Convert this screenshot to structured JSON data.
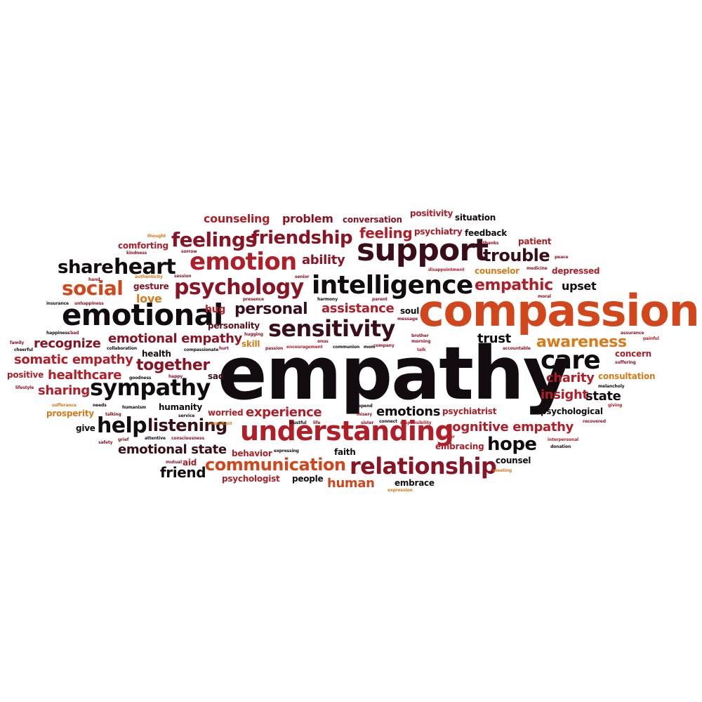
{
  "palette": {
    "c1": "#120c10",
    "c2": "#3a0e16",
    "c3": "#8a1424",
    "c4": "#b01e28",
    "c5": "#d2461c",
    "c6": "#d67a1a",
    "c7": "#5c0f18"
  },
  "words": [
    {
      "text": "empathy"
    },
    {
      "text": "compassion"
    },
    {
      "text": "support"
    },
    {
      "text": "intelligence"
    },
    {
      "text": "understanding"
    },
    {
      "text": "relationship"
    },
    {
      "text": "emotional"
    },
    {
      "text": "sensitivity"
    },
    {
      "text": "sympathy"
    },
    {
      "text": "emotion"
    },
    {
      "text": "psychology"
    },
    {
      "text": "communication"
    },
    {
      "text": "heart"
    },
    {
      "text": "feelings"
    },
    {
      "text": "friendship"
    },
    {
      "text": "care"
    },
    {
      "text": "help"
    },
    {
      "text": "listening"
    },
    {
      "text": "social"
    },
    {
      "text": "share"
    },
    {
      "text": "trouble"
    },
    {
      "text": "personal"
    },
    {
      "text": "empathic"
    },
    {
      "text": "awareness"
    },
    {
      "text": "together"
    },
    {
      "text": "hope"
    },
    {
      "text": "counseling"
    },
    {
      "text": "problem"
    },
    {
      "text": "feeling"
    },
    {
      "text": "ability"
    },
    {
      "text": "emotions"
    },
    {
      "text": "experience"
    },
    {
      "text": "cognitive empathy"
    },
    {
      "text": "emotional state"
    },
    {
      "text": "emotional empathy"
    },
    {
      "text": "somatic empathy"
    },
    {
      "text": "recognize"
    },
    {
      "text": "healthcare"
    },
    {
      "text": "sharing"
    },
    {
      "text": "assistance"
    },
    {
      "text": "insight"
    },
    {
      "text": "charity"
    },
    {
      "text": "trust"
    },
    {
      "text": "state"
    },
    {
      "text": "human"
    },
    {
      "text": "friend"
    },
    {
      "text": "conversation"
    },
    {
      "text": "positivity"
    },
    {
      "text": "situation"
    },
    {
      "text": "psychiatry"
    },
    {
      "text": "feedback"
    },
    {
      "text": "patient"
    },
    {
      "text": "comforting"
    },
    {
      "text": "counselor"
    },
    {
      "text": "depressed"
    },
    {
      "text": "upset"
    },
    {
      "text": "gesture"
    },
    {
      "text": "love"
    },
    {
      "text": "hug"
    },
    {
      "text": "personality"
    },
    {
      "text": "soul"
    },
    {
      "text": "skill"
    },
    {
      "text": "consultation"
    },
    {
      "text": "concern"
    },
    {
      "text": "health"
    },
    {
      "text": "sad"
    },
    {
      "text": "positive"
    },
    {
      "text": "humanity"
    },
    {
      "text": "worried"
    },
    {
      "text": "psychiatrist"
    },
    {
      "text": "psychological"
    },
    {
      "text": "prosperity"
    },
    {
      "text": "give"
    },
    {
      "text": "behavior"
    },
    {
      "text": "faith"
    },
    {
      "text": "embracing"
    },
    {
      "text": "counsel"
    },
    {
      "text": "aid"
    },
    {
      "text": "psychologist"
    },
    {
      "text": "people"
    },
    {
      "text": "embrace"
    },
    {
      "text": "thought"
    },
    {
      "text": "kindness"
    },
    {
      "text": "sorrow"
    },
    {
      "text": "hand"
    },
    {
      "text": "authenticity"
    },
    {
      "text": "session"
    },
    {
      "text": "senior"
    },
    {
      "text": "thanks"
    },
    {
      "text": "peace"
    },
    {
      "text": "disappointment"
    },
    {
      "text": "medicine"
    },
    {
      "text": "moral"
    },
    {
      "text": "insurance"
    },
    {
      "text": "unhappiness"
    },
    {
      "text": "presence"
    },
    {
      "text": "harmony"
    },
    {
      "text": "parent"
    },
    {
      "text": "message"
    },
    {
      "text": "happiness"
    },
    {
      "text": "bad"
    },
    {
      "text": "hugging"
    },
    {
      "text": "onus"
    },
    {
      "text": "brother"
    },
    {
      "text": "morning"
    },
    {
      "text": "assurance"
    },
    {
      "text": "painful"
    },
    {
      "text": "family"
    },
    {
      "text": "cheerful"
    },
    {
      "text": "collaboration"
    },
    {
      "text": "compassionate"
    },
    {
      "text": "hurt"
    },
    {
      "text": "passion"
    },
    {
      "text": "encouragement"
    },
    {
      "text": "communion"
    },
    {
      "text": "mom"
    },
    {
      "text": "company"
    },
    {
      "text": "talk"
    },
    {
      "text": "accountable"
    },
    {
      "text": "suffering"
    },
    {
      "text": "lifestyle"
    },
    {
      "text": "goodness"
    },
    {
      "text": "happy"
    },
    {
      "text": "melancholy"
    },
    {
      "text": "sufferance"
    },
    {
      "text": "talking"
    },
    {
      "text": "needs"
    },
    {
      "text": "humanism"
    },
    {
      "text": "depend"
    },
    {
      "text": "misery"
    },
    {
      "text": "giving"
    },
    {
      "text": "consultant"
    },
    {
      "text": "service"
    },
    {
      "text": "trustful"
    },
    {
      "text": "life"
    },
    {
      "text": "sister"
    },
    {
      "text": "connect"
    },
    {
      "text": "responsibility"
    },
    {
      "text": "recovered"
    },
    {
      "text": "safety"
    },
    {
      "text": "grief"
    },
    {
      "text": "attentive"
    },
    {
      "text": "consciousness"
    },
    {
      "text": "mother"
    },
    {
      "text": "interpersonal"
    },
    {
      "text": "donation"
    },
    {
      "text": "mutual"
    },
    {
      "text": "expressing"
    },
    {
      "text": "meeting"
    },
    {
      "text": "expression"
    }
  ]
}
